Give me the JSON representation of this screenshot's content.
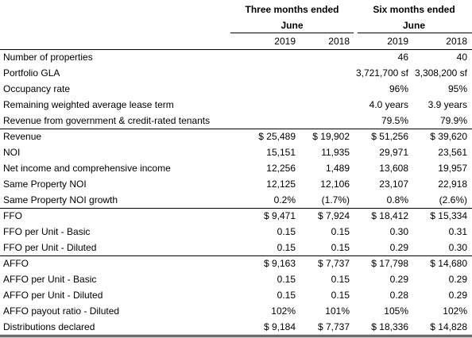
{
  "header": {
    "groups": [
      {
        "title": "Three months ended",
        "subtitle": "June",
        "years": [
          "2019",
          "2018"
        ]
      },
      {
        "title": "Six months ended",
        "subtitle": "June",
        "years": [
          "2019",
          "2018"
        ]
      }
    ]
  },
  "table": {
    "sections": [
      [
        {
          "label": "Number of properties",
          "cells": [
            null,
            null,
            "46",
            "40"
          ]
        },
        {
          "label": "Portfolio GLA",
          "cells": [
            null,
            null,
            "3,721,700 sf",
            "3,308,200 sf"
          ]
        },
        {
          "label": "Occupancy rate",
          "cells": [
            null,
            null,
            "96%",
            "95%"
          ]
        },
        {
          "label": "Remaining weighted average lease term",
          "cells": [
            null,
            null,
            "4.0 years",
            "3.9 years"
          ]
        },
        {
          "label": "Revenue from government & credit-rated tenants",
          "cells": [
            null,
            null,
            "79.5%",
            "79.9%"
          ]
        }
      ],
      [
        {
          "label": "Revenue",
          "cells": [
            "$ 25,489",
            "$ 19,902",
            "$ 51,256",
            "$ 39,620"
          ]
        },
        {
          "label": "NOI",
          "cells": [
            "15,151",
            "11,935",
            "29,971",
            "23,561"
          ]
        },
        {
          "label": "Net income and comprehensive income",
          "cells": [
            "12,256",
            "1,489",
            "13,608",
            "19,957"
          ]
        },
        {
          "label": "Same Property NOI",
          "cells": [
            "12,125",
            "12,106",
            "23,107",
            "22,918"
          ]
        },
        {
          "label": "Same Property NOI growth",
          "cells": [
            "0.2%",
            "(1.7%)",
            "0.8%",
            "(2.6%)"
          ]
        }
      ],
      [
        {
          "label": "FFO",
          "cells": [
            "$ 9,471",
            "$ 7,924",
            "$ 18,412",
            "$ 15,334"
          ]
        },
        {
          "label": "FFO per Unit - Basic",
          "cells": [
            "0.15",
            "0.15",
            "0.30",
            "0.31"
          ]
        },
        {
          "label": "FFO per Unit - Diluted",
          "cells": [
            "0.15",
            "0.15",
            "0.29",
            "0.30"
          ]
        }
      ],
      [
        {
          "label": "AFFO",
          "cells": [
            "$ 9,163",
            "$ 7,737",
            "$ 17,798",
            "$ 14,680"
          ]
        },
        {
          "label": "AFFO per Unit - Basic",
          "cells": [
            "0.15",
            "0.15",
            "0.29",
            "0.29"
          ]
        },
        {
          "label": "AFFO per Unit - Diluted",
          "cells": [
            "0.15",
            "0.15",
            "0.28",
            "0.29"
          ]
        },
        {
          "label": "AFFO payout ratio - Diluted",
          "cells": [
            "102%",
            "101%",
            "105%",
            "102%"
          ]
        },
        {
          "label": "Distributions declared",
          "cells": [
            "$ 9,184",
            "$ 7,737",
            "$ 18,336",
            "$ 14,828"
          ]
        }
      ]
    ]
  }
}
